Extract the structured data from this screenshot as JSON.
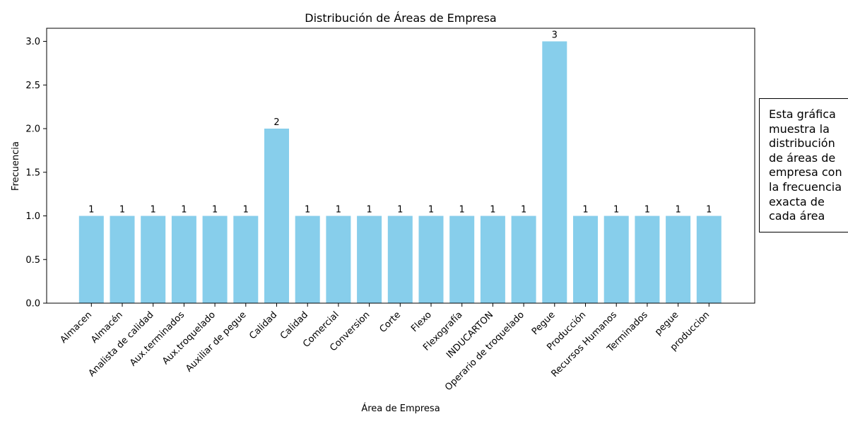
{
  "chart_data": {
    "type": "bar",
    "title": "Distribución de Áreas de Empresa",
    "xlabel": "Área de Empresa",
    "ylabel": "Frecuencia",
    "ylim": [
      0,
      3.15
    ],
    "yticks": [
      "0.0",
      "0.5",
      "1.0",
      "1.5",
      "2.0",
      "2.5",
      "3.0"
    ],
    "grid": false,
    "bar_color": "#87ceeb",
    "categories": [
      "Almacen",
      "Almacén",
      "Analista de calidad",
      "Aux.terminados",
      "Aux.troquelado",
      "Auxiliar de pegue",
      "Calidad ",
      "Calidad",
      "Comercial",
      "Conversion",
      "Corte",
      "Flexo",
      "Flexografía",
      "INDUCARTON",
      "Operario de troquelado",
      "Pegue",
      "Producción",
      "Recursos Humanos",
      "Terminados",
      "pegue",
      "produccion"
    ],
    "values": [
      1,
      1,
      1,
      1,
      1,
      1,
      2,
      1,
      1,
      1,
      1,
      1,
      1,
      1,
      1,
      3,
      1,
      1,
      1,
      1,
      1
    ]
  },
  "annotation": {
    "lines": [
      "Esta gráfica",
      "muestra la",
      "distribución",
      "de áreas de",
      "empresa con",
      "la frecuencia",
      "exacta de",
      "cada área"
    ]
  }
}
